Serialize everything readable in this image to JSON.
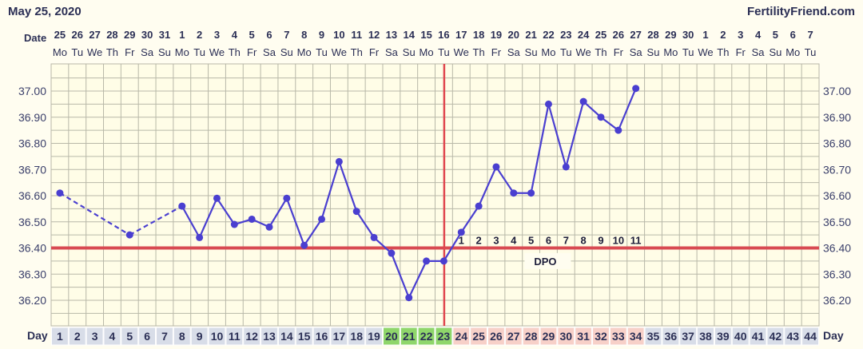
{
  "header": {
    "date": "May 25, 2020",
    "site": "FertilityFriend.com"
  },
  "labels": {
    "date": "Date",
    "day": "Day",
    "dpo": "DPO"
  },
  "colors": {
    "line": "#4a3fd0",
    "coverline": "#d84a52",
    "ovulation": "#e0464e",
    "grid": "#b8b8a8",
    "plot_bg": "#fffde7",
    "day_green": "#8fd66b",
    "day_pink": "#f7d0c8",
    "day_gray": "#d8dde8"
  },
  "chart_data": {
    "type": "line",
    "title": "",
    "xlabel": "Day",
    "ylabel": "",
    "ylim": [
      36.1,
      37.1
    ],
    "yticks": [
      "37.00",
      "36.90",
      "36.80",
      "36.70",
      "36.60",
      "36.50",
      "36.40",
      "36.30",
      "36.20"
    ],
    "dates": [
      "25",
      "26",
      "27",
      "28",
      "29",
      "30",
      "31",
      "1",
      "2",
      "3",
      "4",
      "5",
      "6",
      "7",
      "8",
      "9",
      "10",
      "11",
      "12",
      "13",
      "14",
      "15",
      "16",
      "17",
      "18",
      "19",
      "20",
      "21",
      "22",
      "23",
      "24",
      "25",
      "26",
      "27",
      "28",
      "29",
      "30",
      "1",
      "2",
      "3",
      "4",
      "5",
      "6",
      "7"
    ],
    "weekdays": [
      "Mo",
      "Tu",
      "We",
      "Th",
      "Fr",
      "Sa",
      "Su",
      "Mo",
      "Tu",
      "We",
      "Th",
      "Fr",
      "Sa",
      "Su",
      "Mo",
      "Tu",
      "We",
      "Th",
      "Fr",
      "Sa",
      "Su",
      "Mo",
      "Tu",
      "We",
      "Th",
      "Fr",
      "Sa",
      "Su",
      "Mo",
      "Tu",
      "We",
      "Th",
      "Fr",
      "Sa",
      "Su",
      "Mo",
      "Tu",
      "We",
      "Th",
      "Fr",
      "Sa",
      "Su",
      "Mo",
      "Tu"
    ],
    "days": [
      "1",
      "2",
      "3",
      "4",
      "5",
      "6",
      "7",
      "8",
      "9",
      "10",
      "11",
      "12",
      "13",
      "14",
      "15",
      "16",
      "17",
      "18",
      "19",
      "20",
      "21",
      "22",
      "23",
      "24",
      "25",
      "26",
      "27",
      "28",
      "29",
      "30",
      "31",
      "32",
      "33",
      "34",
      "35",
      "36",
      "37",
      "38",
      "39",
      "40",
      "41",
      "42",
      "43",
      "44"
    ],
    "temperatures": [
      {
        "day": 1,
        "temp": 36.61
      },
      {
        "day": 5,
        "temp": 36.45
      },
      {
        "day": 8,
        "temp": 36.56
      },
      {
        "day": 9,
        "temp": 36.44
      },
      {
        "day": 10,
        "temp": 36.59
      },
      {
        "day": 11,
        "temp": 36.49
      },
      {
        "day": 12,
        "temp": 36.51
      },
      {
        "day": 13,
        "temp": 36.48
      },
      {
        "day": 14,
        "temp": 36.59
      },
      {
        "day": 15,
        "temp": 36.41
      },
      {
        "day": 16,
        "temp": 36.51
      },
      {
        "day": 17,
        "temp": 36.73
      },
      {
        "day": 18,
        "temp": 36.54
      },
      {
        "day": 19,
        "temp": 36.44
      },
      {
        "day": 20,
        "temp": 36.38
      },
      {
        "day": 21,
        "temp": 36.21
      },
      {
        "day": 22,
        "temp": 36.35
      },
      {
        "day": 23,
        "temp": 36.35
      },
      {
        "day": 24,
        "temp": 36.46
      },
      {
        "day": 25,
        "temp": 36.56
      },
      {
        "day": 26,
        "temp": 36.71
      },
      {
        "day": 27,
        "temp": 36.61
      },
      {
        "day": 28,
        "temp": 36.61
      },
      {
        "day": 29,
        "temp": 36.95
      },
      {
        "day": 30,
        "temp": 36.71
      },
      {
        "day": 31,
        "temp": 36.96
      },
      {
        "day": 32,
        "temp": 36.9
      },
      {
        "day": 33,
        "temp": 36.85
      },
      {
        "day": 34,
        "temp": 37.01
      }
    ],
    "dashed_segments": [
      [
        1,
        5
      ],
      [
        5,
        8
      ]
    ],
    "coverline": 36.4,
    "ovulation_day": 23,
    "dpo_labels": [
      "1",
      "2",
      "3",
      "4",
      "5",
      "6",
      "7",
      "8",
      "9",
      "10",
      "11"
    ],
    "dpo_start_day": 24,
    "green_days": [
      20,
      21,
      22,
      23
    ],
    "pink_days": [
      24,
      25,
      26,
      27,
      28,
      29,
      30,
      31,
      32,
      33,
      34
    ],
    "grid": true
  }
}
